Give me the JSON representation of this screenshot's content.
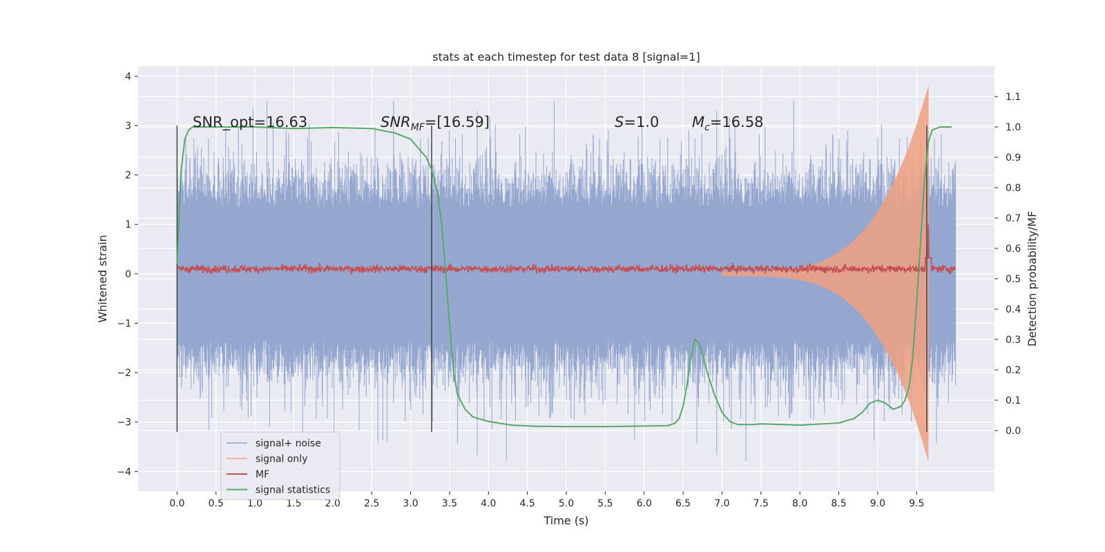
{
  "chart_data": {
    "type": "line",
    "title": "stats at each timestep for test data 8 [signal=1]",
    "xlabel": "Time (s)",
    "ylabel": "Whitened strain",
    "y2label": "Detection probability/MF",
    "xlim": [
      -0.5,
      10.5
    ],
    "ylim": [
      -4.4,
      4.2
    ],
    "y2lim": [
      -0.2,
      1.2
    ],
    "x_ticks": [
      "0.0",
      "0.5",
      "1.0",
      "1.5",
      "2.0",
      "2.5",
      "3.0",
      "3.5",
      "4.0",
      "4.5",
      "5.0",
      "5.5",
      "6.0",
      "6.5",
      "7.0",
      "7.5",
      "8.0",
      "8.5",
      "9.0",
      "9.5"
    ],
    "y_ticks": [
      "−4",
      "−3",
      "−2",
      "−1",
      "0",
      "1",
      "2",
      "3",
      "4"
    ],
    "y2_ticks": [
      "0.0",
      "0.1",
      "0.2",
      "0.3",
      "0.4",
      "0.5",
      "0.6",
      "0.7",
      "0.8",
      "0.9",
      "1.0",
      "1.1"
    ],
    "grid": true,
    "legend_position": "lower-left",
    "annotations": {
      "snr_opt": "SNR_opt=16.63",
      "snr_mf_main": "SNR",
      "snr_mf_sub": "MF",
      "snr_mf_rest": "=[16.59]",
      "s_main": "S",
      "s_rest": "=1.0",
      "mc_main": "M",
      "mc_sub": "c",
      "mc_rest": "=16.58"
    },
    "markers_x": [
      0.0,
      3.27,
      9.63
    ],
    "series": [
      {
        "name": "signal+ noise",
        "color": "#8da0cb",
        "axis": "left",
        "x_range": [
          0.0,
          10.0
        ],
        "envelope_typical": 1.3,
        "envelope_peak": 3.5
      },
      {
        "name": "signal only",
        "color": "#f0a080",
        "axis": "left",
        "x_range": [
          7.0,
          9.65
        ],
        "amplitude_start": 0.05,
        "amplitude_end": 3.8
      },
      {
        "name": "MF",
        "color": "#c44e52",
        "axis": "left",
        "x_range": [
          0.0,
          10.0
        ],
        "baseline": 0.1,
        "spike_x": 9.65,
        "spike_value": 1.0
      },
      {
        "name": "signal statistics",
        "color": "#55a868",
        "axis": "right",
        "x": [
          0.0,
          0.05,
          0.1,
          0.15,
          0.2,
          0.5,
          1.0,
          1.5,
          2.0,
          2.5,
          2.8,
          3.0,
          3.1,
          3.2,
          3.27,
          3.35,
          3.4,
          3.45,
          3.5,
          3.55,
          3.6,
          3.7,
          3.8,
          4.0,
          4.3,
          4.6,
          5.0,
          5.5,
          6.0,
          6.3,
          6.4,
          6.45,
          6.5,
          6.55,
          6.6,
          6.65,
          6.7,
          6.75,
          6.8,
          6.9,
          7.0,
          7.1,
          7.2,
          7.3,
          7.4,
          7.5,
          8.0,
          8.5,
          8.7,
          8.8,
          8.9,
          9.0,
          9.1,
          9.2,
          9.3,
          9.35,
          9.4,
          9.45,
          9.5,
          9.55,
          9.6,
          9.65,
          9.7,
          9.8,
          9.95
        ],
        "y": [
          0.55,
          0.85,
          0.96,
          0.99,
          1.0,
          1.0,
          1.0,
          0.995,
          0.998,
          0.995,
          0.98,
          0.96,
          0.93,
          0.9,
          0.86,
          0.78,
          0.68,
          0.52,
          0.35,
          0.2,
          0.12,
          0.07,
          0.045,
          0.03,
          0.018,
          0.014,
          0.013,
          0.013,
          0.015,
          0.016,
          0.025,
          0.04,
          0.08,
          0.15,
          0.24,
          0.3,
          0.29,
          0.25,
          0.2,
          0.12,
          0.06,
          0.03,
          0.02,
          0.02,
          0.02,
          0.022,
          0.018,
          0.025,
          0.04,
          0.06,
          0.09,
          0.1,
          0.09,
          0.07,
          0.08,
          0.1,
          0.14,
          0.24,
          0.42,
          0.62,
          0.82,
          0.95,
          0.99,
          1.0,
          1.0
        ]
      }
    ]
  }
}
